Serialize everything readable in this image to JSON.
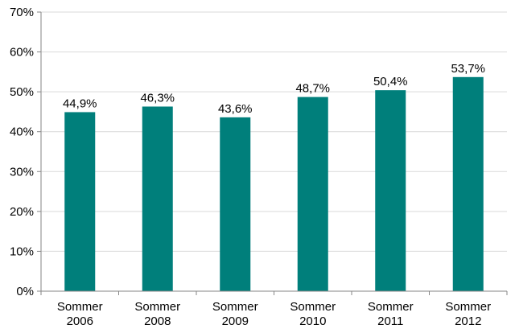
{
  "chart_data": {
    "type": "bar",
    "categories": [
      [
        "Sommer",
        "2006"
      ],
      [
        "Sommer",
        "2008"
      ],
      [
        "Sommer",
        "2009"
      ],
      [
        "Sommer",
        "2010"
      ],
      [
        "Sommer",
        "2011"
      ],
      [
        "Sommer",
        "2012"
      ]
    ],
    "values": [
      44.9,
      46.3,
      43.6,
      48.7,
      50.4,
      53.7
    ],
    "value_labels": [
      "44,9%",
      "46,3%",
      "43,6%",
      "48,7%",
      "50,4%",
      "53,7%"
    ],
    "y_ticks": [
      0,
      10,
      20,
      30,
      40,
      50,
      60,
      70
    ],
    "y_tick_labels": [
      "0%",
      "10%",
      "20%",
      "30%",
      "40%",
      "50%",
      "60%",
      "70%"
    ],
    "ylim": [
      0,
      70
    ],
    "grid": true,
    "bar_color": "#007F7B",
    "grid_color": "#D9D9D9",
    "axis_color": "#868686"
  }
}
